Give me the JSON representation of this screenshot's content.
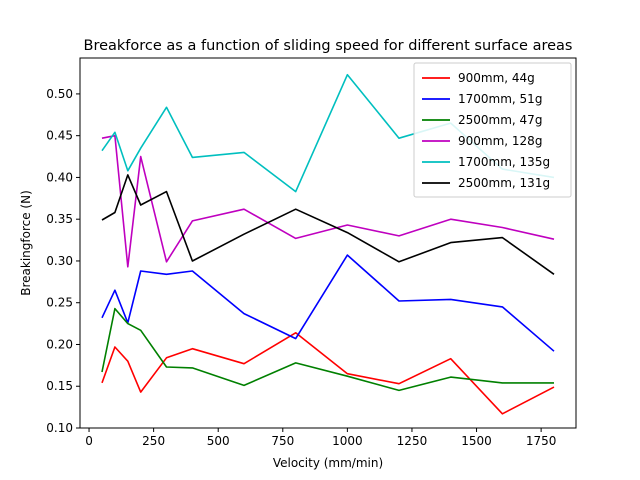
{
  "chart_data": {
    "type": "line",
    "title": "Breakforce as a function of sliding speed for different surface areas",
    "xlabel": "Velocity (mm/min)",
    "ylabel": "Breakingforce (N)",
    "xlim": [
      -35,
      1885
    ],
    "ylim": [
      0.1,
      0.543
    ],
    "xticks": [
      0,
      250,
      500,
      750,
      1000,
      1250,
      1500,
      1750
    ],
    "yticks": [
      0.1,
      0.15,
      0.2,
      0.25,
      0.3,
      0.35,
      0.4,
      0.45,
      0.5
    ],
    "xtick_labels": [
      "0",
      "250",
      "500",
      "750",
      "1000",
      "1250",
      "1500",
      "1750"
    ],
    "ytick_labels": [
      "0.10",
      "0.15",
      "0.20",
      "0.25",
      "0.30",
      "0.35",
      "0.40",
      "0.45",
      "0.50"
    ],
    "grid": false,
    "legend_position": "top-right",
    "series": [
      {
        "name": "900mm, 44g",
        "color": "#ff0000",
        "x": [
          50,
          100,
          150,
          200,
          300,
          400,
          600,
          800,
          1000,
          1200,
          1400,
          1600,
          1800
        ],
        "y": [
          0.154,
          0.197,
          0.18,
          0.143,
          0.184,
          0.195,
          0.177,
          0.214,
          0.165,
          0.153,
          0.183,
          0.117,
          0.149
        ]
      },
      {
        "name": "1700mm, 51g",
        "color": "#0000ff",
        "x": [
          50,
          100,
          150,
          200,
          300,
          400,
          600,
          800,
          1000,
          1200,
          1400,
          1600,
          1800
        ],
        "y": [
          0.232,
          0.265,
          0.226,
          0.288,
          0.284,
          0.288,
          0.237,
          0.207,
          0.307,
          0.252,
          0.254,
          0.245,
          0.192
        ]
      },
      {
        "name": "2500mm, 47g",
        "color": "#008000",
        "x": [
          50,
          100,
          150,
          200,
          300,
          400,
          600,
          800,
          1000,
          1200,
          1400,
          1600,
          1800
        ],
        "y": [
          0.167,
          0.243,
          0.225,
          0.217,
          0.173,
          0.172,
          0.151,
          0.178,
          0.162,
          0.145,
          0.161,
          0.154,
          0.154
        ]
      },
      {
        "name": "900mm, 128g",
        "color": "#bf00bf",
        "x": [
          50,
          100,
          150,
          200,
          300,
          400,
          600,
          800,
          1000,
          1200,
          1400,
          1600,
          1800
        ],
        "y": [
          0.447,
          0.45,
          0.293,
          0.425,
          0.299,
          0.348,
          0.362,
          0.327,
          0.343,
          0.33,
          0.35,
          0.34,
          0.326
        ]
      },
      {
        "name": "1700mm, 135g",
        "color": "#00bfbf",
        "x": [
          50,
          100,
          150,
          200,
          300,
          400,
          600,
          800,
          1000,
          1200,
          1400,
          1600,
          1800
        ],
        "y": [
          0.432,
          0.454,
          0.408,
          0.435,
          0.484,
          0.424,
          0.43,
          0.383,
          0.523,
          0.447,
          0.465,
          0.41,
          0.4
        ]
      },
      {
        "name": "2500mm, 131g",
        "color": "#000000",
        "x": [
          50,
          100,
          150,
          200,
          300,
          400,
          600,
          800,
          1000,
          1200,
          1400,
          1600,
          1800
        ],
        "y": [
          0.349,
          0.358,
          0.403,
          0.367,
          0.383,
          0.3,
          0.332,
          0.362,
          0.334,
          0.299,
          0.322,
          0.328,
          0.284
        ]
      }
    ]
  }
}
